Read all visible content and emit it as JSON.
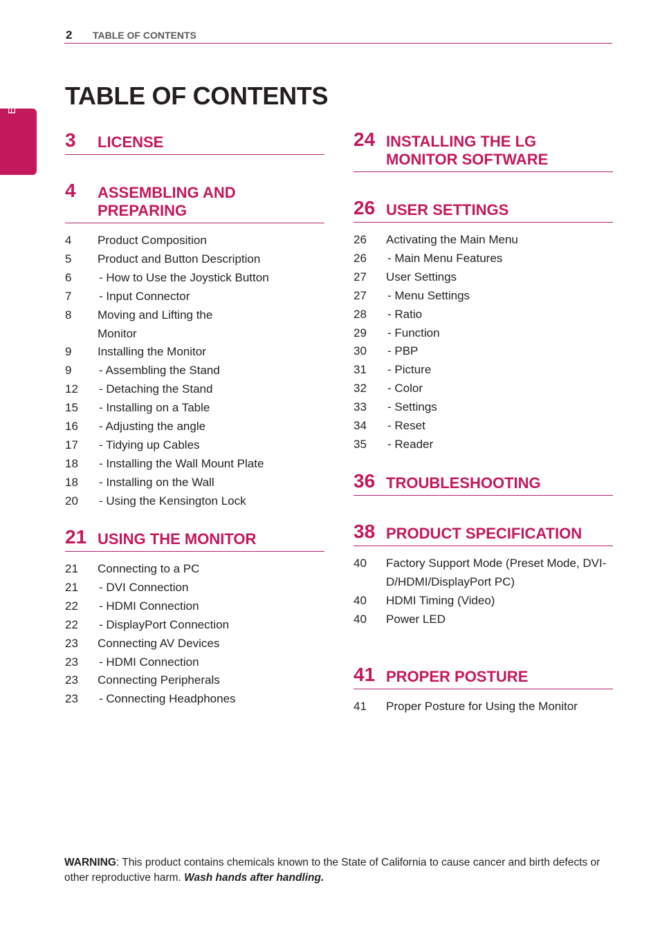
{
  "header": {
    "page_number": "2",
    "running_title": "TABLE OF CONTENTS"
  },
  "side_tab": "ENGLISH",
  "title": "TABLE OF CONTENTS",
  "left_sections": [
    {
      "number": "3",
      "title": "LICENSE",
      "entries": []
    },
    {
      "number": "4",
      "title": "ASSEMBLING AND PREPARING",
      "entries": [
        {
          "page": "4",
          "text": "Product Composition"
        },
        {
          "page": "5",
          "text": "Product and Button Description"
        },
        {
          "page": "6",
          "text": "- How to Use the Joystick Button"
        },
        {
          "page": "7",
          "text": "- Input Connector"
        },
        {
          "page": "8",
          "text": "Moving and Lifting the Monitor"
        },
        {
          "page": "9",
          "text": "Installing the Monitor"
        },
        {
          "page": "9",
          "text": "- Assembling the Stand"
        },
        {
          "page": "12",
          "text": "- Detaching the Stand"
        },
        {
          "page": "15",
          "text": "- Installing on a Table"
        },
        {
          "page": "16",
          "text": "- Adjusting the angle"
        },
        {
          "page": "17",
          "text": "- Tidying up Cables"
        },
        {
          "page": "18",
          "text": "- Installing the Wall Mount Plate"
        },
        {
          "page": "18",
          "text": "- Installing on the Wall"
        },
        {
          "page": "20",
          "text": "- Using the Kensington Lock"
        }
      ]
    },
    {
      "number": "21",
      "title": "USING THE MONITOR",
      "entries": [
        {
          "page": "21",
          "text": "Connecting to a PC"
        },
        {
          "page": "21",
          "text": "- DVI Connection"
        },
        {
          "page": "22",
          "text": "- HDMI Connection"
        },
        {
          "page": "22",
          "text": "- DisplayPort Connection"
        },
        {
          "page": "23",
          "text": "Connecting AV Devices"
        },
        {
          "page": "23",
          "text": "- HDMI Connection"
        },
        {
          "page": "23",
          "text": "Connecting Peripherals"
        },
        {
          "page": "23",
          "text": "- Connecting Headphones"
        }
      ]
    }
  ],
  "right_sections": [
    {
      "number": "24",
      "title": "INSTALLING THE LG MONITOR SOFTWARE",
      "entries": []
    },
    {
      "number": "26",
      "title": "USER SETTINGS",
      "entries": [
        {
          "page": "26",
          "text": "Activating the Main Menu"
        },
        {
          "page": "26",
          "text": "- Main Menu Features"
        },
        {
          "page": "27",
          "text": "User Settings"
        },
        {
          "page": "27",
          "text": "- Menu Settings"
        },
        {
          "page": "28",
          "text": "- Ratio"
        },
        {
          "page": "29",
          "text": "- Function"
        },
        {
          "page": "30",
          "text": "- PBP"
        },
        {
          "page": "31",
          "text": "- Picture"
        },
        {
          "page": "32",
          "text": "- Color"
        },
        {
          "page": "33",
          "text": "- Settings"
        },
        {
          "page": "34",
          "text": "- Reset"
        },
        {
          "page": "35",
          "text": "- Reader"
        }
      ]
    },
    {
      "number": "36",
      "title": "TROUBLESHOOTING",
      "entries": []
    },
    {
      "number": "38",
      "title": "PRODUCT SPECIFICATION",
      "entries": [
        {
          "page": "40",
          "text": "Factory Support Mode (Preset Mode, DVI-D/HDMI/DisplayPort PC)"
        },
        {
          "page": "40",
          "text": "HDMI Timing (Video)"
        },
        {
          "page": "40",
          "text": "Power LED"
        }
      ]
    },
    {
      "number": "41",
      "title": "PROPER POSTURE",
      "entries": [
        {
          "page": "41",
          "text": "Proper Posture for Using the Monitor"
        }
      ]
    }
  ],
  "warning": {
    "label": "WARNING",
    "text": ": This product contains chemicals known to the State of California to cause cancer and birth defects or other reproductive harm. ",
    "emphasis": "Wash hands after handling."
  }
}
